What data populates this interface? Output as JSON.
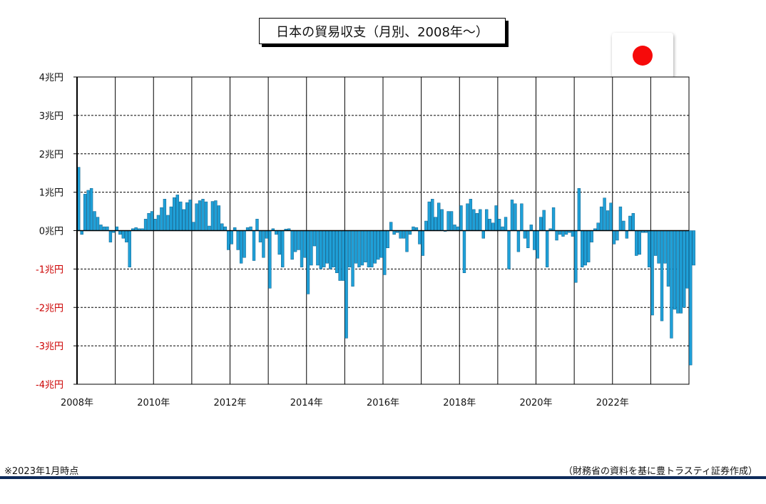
{
  "chart_data": {
    "type": "bar",
    "title": "日本の貿易収支（月別、2008年～）",
    "ylim": [
      -4,
      4
    ],
    "y_ticks": [
      {
        "value": 4,
        "label": "4兆円"
      },
      {
        "value": 3,
        "label": "3兆円"
      },
      {
        "value": 2,
        "label": "2兆円"
      },
      {
        "value": 1,
        "label": "1兆円"
      },
      {
        "value": 0,
        "label": "0兆円"
      },
      {
        "value": -1,
        "label": "-1兆円"
      },
      {
        "value": -2,
        "label": "-2兆円"
      },
      {
        "value": -3,
        "label": "-3兆円"
      },
      {
        "value": -4,
        "label": "-4兆円"
      }
    ],
    "x_tick_labels": [
      "2008年",
      "2010年",
      "2012年",
      "2014年",
      "2016年",
      "2018年",
      "2020年",
      "2022年"
    ],
    "x_start": "2008-01",
    "x_end": "2023-12",
    "grid": true,
    "colors": {
      "bar": "#1fa0d8",
      "bar_edge": "#0c5f8a",
      "negative_label": "#cc0000",
      "positive_label": "#111111"
    },
    "series": [
      {
        "values": [
          1.65,
          -0.1,
          0.95,
          1.05,
          1.1,
          0.5,
          0.35,
          0.15,
          0.1,
          0.1,
          -0.3,
          -0.05,
          0.1,
          -0.1,
          -0.2,
          -0.3,
          -0.95,
          0.05,
          0.08,
          0.05,
          0.05,
          0.3,
          0.45,
          0.5,
          0.3,
          0.4,
          0.6,
          0.82,
          0.4,
          0.62,
          0.86,
          0.93,
          0.75,
          0.55,
          0.73,
          0.8,
          0.22,
          0.7,
          0.78,
          0.82,
          0.75,
          0.12,
          0.76,
          0.78,
          0.65,
          0.18,
          0.1,
          -0.5,
          -0.35,
          0.08,
          -0.5,
          -0.85,
          -0.7,
          0.08,
          0.1,
          -0.78,
          0.3,
          -0.3,
          -0.7,
          -0.2,
          -1.5,
          0.05,
          -0.1,
          -0.62,
          -0.95,
          0.04,
          0.05,
          -0.75,
          -0.55,
          -0.5,
          -0.95,
          -0.7,
          -1.65,
          -0.9,
          -0.4,
          -0.9,
          -1.0,
          -0.95,
          -0.85,
          -1.0,
          -0.95,
          -1.1,
          -1.3,
          -1.3,
          -2.8,
          -0.95,
          -1.45,
          -0.85,
          -0.95,
          -0.9,
          -0.82,
          -0.95,
          -0.95,
          -0.85,
          -0.75,
          -0.7,
          -1.15,
          -0.45,
          0.22,
          -0.1,
          -0.05,
          -0.2,
          -0.2,
          -0.55,
          -0.1,
          0.1,
          0.08,
          -0.35,
          -0.65,
          0.25,
          0.75,
          0.82,
          0.35,
          0.72,
          0.55,
          -0.02,
          0.5,
          0.5,
          0.15,
          0.1,
          0.65,
          -1.1,
          0.7,
          0.82,
          0.55,
          0.45,
          0.55,
          -0.2,
          0.55,
          0.3,
          0.2,
          0.65,
          0.3,
          0.1,
          0.35,
          -1.0,
          0.8,
          0.7,
          -0.55,
          0.7,
          -0.2,
          -0.45,
          0.15,
          -0.5,
          -0.72,
          0.35,
          0.53,
          -0.95,
          0.05,
          0.6,
          -0.25,
          -0.1,
          -0.15,
          -0.1,
          -0.05,
          -0.15,
          -1.35,
          1.1,
          -0.95,
          -0.9,
          -0.82,
          -0.3,
          0.05,
          0.2,
          0.62,
          0.85,
          0.52,
          0.72,
          -0.35,
          -0.25,
          0.62,
          0.25,
          -0.2,
          0.38,
          0.45,
          -0.65,
          -0.62,
          -0.05,
          -0.05,
          -0.95,
          -2.2,
          -0.65,
          -0.85,
          -2.35,
          -0.85,
          -1.45,
          -2.8,
          -2.05,
          -2.15,
          -2.15,
          -2.0,
          -1.5,
          -3.5,
          -0.9
        ]
      }
    ]
  },
  "footnote": "※2023年1月時点",
  "source": "（財務省の資料を基に豊トラスティ証券作成）",
  "flag": {
    "icon": "japan-flag-icon",
    "color": "#f60a0a"
  }
}
